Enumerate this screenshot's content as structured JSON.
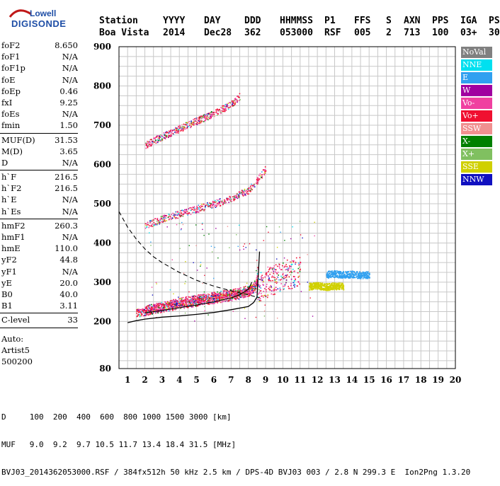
{
  "logo": {
    "top": "Lowell",
    "bottom": "DIGISONDE"
  },
  "header": {
    "line1": [
      "Station",
      "YYYY",
      "DAY",
      "DDD",
      "HHMMSS",
      "P1",
      "FFS",
      "S",
      "AXN",
      "PPS",
      "IGA",
      "PS"
    ],
    "line2": [
      "Boa Vista",
      "2014",
      "Dec28",
      "362",
      "053000",
      "RSF",
      "005",
      "2",
      "713",
      "100",
      "03+",
      "30"
    ]
  },
  "params": [
    {
      "name": "foF2",
      "value": "8.650"
    },
    {
      "name": "foF1",
      "value": "N/A"
    },
    {
      "name": "foF1p",
      "value": "N/A"
    },
    {
      "name": "foE",
      "value": "N/A"
    },
    {
      "name": "foEp",
      "value": "0.46"
    },
    {
      "name": "fxI",
      "value": "9.25"
    },
    {
      "name": "foEs",
      "value": "N/A"
    },
    {
      "name": "fmin",
      "value": "1.50"
    },
    {
      "sep": true
    },
    {
      "name": "MUF(D)",
      "value": "31.53"
    },
    {
      "name": "M(D)",
      "value": "3.65"
    },
    {
      "name": "D",
      "value": "N/A"
    },
    {
      "sep": true
    },
    {
      "name": "h`F",
      "value": "216.5"
    },
    {
      "name": "h`F2",
      "value": "216.5"
    },
    {
      "name": "h`E",
      "value": "N/A"
    },
    {
      "name": "h`Es",
      "value": "N/A"
    },
    {
      "sep": true
    },
    {
      "name": "hmF2",
      "value": "260.3"
    },
    {
      "name": "hmF1",
      "value": "N/A"
    },
    {
      "name": "hmE",
      "value": "110.0"
    },
    {
      "name": "yF2",
      "value": "44.8"
    },
    {
      "name": "yF1",
      "value": "N/A"
    },
    {
      "name": "yE",
      "value": "20.0"
    },
    {
      "name": "B0",
      "value": "40.0"
    },
    {
      "name": "B1",
      "value": "3.11"
    },
    {
      "sep": true
    },
    {
      "name": "C-level",
      "value": "33"
    },
    {
      "sep": true
    }
  ],
  "autoscaler": [
    "Auto:",
    "Artist5",
    "500200"
  ],
  "legend": [
    {
      "label": "NoVal",
      "color": "#808080"
    },
    {
      "label": "NNE",
      "color": "#00e0f0"
    },
    {
      "label": "E",
      "color": "#30a0f0"
    },
    {
      "label": "W",
      "color": "#a000a0"
    },
    {
      "label": "Vo-",
      "color": "#f040a0"
    },
    {
      "label": "Vo+",
      "color": "#f01030"
    },
    {
      "label": "SSW",
      "color": "#f09090"
    },
    {
      "label": "X-",
      "color": "#008000"
    },
    {
      "label": "X+",
      "color": "#80c060"
    },
    {
      "label": "SSE",
      "color": "#d0d000"
    },
    {
      "label": "NNW",
      "color": "#1010c0"
    }
  ],
  "footer": {
    "d_row": "D     100  200  400  600  800 1000 1500 3000 [km]",
    "muf_row": "MUF   9.0  9.2  9.7 10.5 11.7 13.4 18.4 31.5 [MHz]",
    "file_row": "BVJ03_2014362053000.RSF / 384fx512h 50 kHz 2.5 km / DPS-4D BVJ03 003 / 2.8 N 299.3 E  Ion2Png 1.3.20"
  },
  "chart_data": {
    "type": "scatter",
    "xlim": [
      0.5,
      20
    ],
    "ylim": [
      80,
      900
    ],
    "xticks": [
      "1",
      "2",
      "3",
      "4",
      "5",
      "6",
      "7",
      "8",
      "9",
      "10",
      "11",
      "12",
      "13",
      "14",
      "15",
      "16",
      "17",
      "18",
      "19",
      "20"
    ],
    "yticks": [
      "200",
      "300",
      "400",
      "500",
      "600",
      "700",
      "800",
      "900"
    ],
    "yticks_bottom": "80",
    "grid": true,
    "legend_position": "right",
    "series": [
      {
        "kind": "trace",
        "polarization": "Vo+",
        "x": [
          1.5,
          2.0,
          3.0,
          4.0,
          5.0,
          6.0,
          7.0,
          7.5,
          8.0,
          8.3,
          8.6
        ],
        "y": [
          222,
          227,
          236,
          244,
          251,
          258,
          265,
          270,
          276,
          290,
          320
        ]
      },
      {
        "kind": "trace",
        "polarization": "X-",
        "x": [
          2.0,
          3.0,
          4.0,
          5.0,
          6.0,
          7.0,
          8.0,
          8.5,
          9.0,
          10.0,
          11.0
        ],
        "y": [
          230,
          240,
          250,
          258,
          265,
          272,
          282,
          288,
          298,
          318,
          330
        ]
      },
      {
        "kind": "trace",
        "polarization": "Vo+",
        "x": [
          2.0,
          3.0,
          4.0,
          5.0,
          6.0,
          7.0,
          8.0,
          8.5,
          9.0
        ],
        "y": [
          445,
          462,
          475,
          488,
          500,
          515,
          535,
          560,
          590
        ]
      },
      {
        "kind": "trace",
        "polarization": "Vo+",
        "x": [
          2.0,
          3.0,
          4.0,
          5.0,
          6.0,
          7.0,
          7.5
        ],
        "y": [
          650,
          672,
          692,
          712,
          730,
          755,
          775
        ]
      },
      {
        "kind": "trace",
        "polarization": "E",
        "x": [
          12.5,
          13.0,
          13.5,
          14.0,
          14.5,
          15.0
        ],
        "y": [
          320,
          322,
          320,
          321,
          319,
          320
        ]
      },
      {
        "kind": "trace",
        "polarization": "SSE",
        "x": [
          11.5,
          12.0,
          12.5,
          13.0,
          13.5
        ],
        "y": [
          290,
          292,
          289,
          291,
          290
        ]
      }
    ],
    "profile_solid": {
      "x": [
        1.0,
        1.5,
        2.0,
        3.0,
        4.0,
        5.0,
        6.0,
        7.0,
        8.0,
        8.3,
        8.5,
        8.65
      ],
      "y": [
        197,
        202,
        206,
        211,
        214,
        218,
        223,
        230,
        238,
        248,
        262,
        378
      ]
    },
    "profile_solid2": {
      "x": [
        2.0,
        3.0,
        4.0,
        5.0,
        6.0,
        7.0,
        7.5,
        8.0,
        8.2
      ],
      "y": [
        222,
        228,
        235,
        242,
        250,
        260,
        268,
        282,
        300
      ]
    },
    "muf_dashed": {
      "x": [
        0.5,
        1.0,
        1.5,
        2.0,
        2.5,
        3.0,
        4.0,
        5.0,
        6.0,
        7.0,
        8.0,
        8.65
      ],
      "y": [
        480,
        440,
        410,
        385,
        365,
        350,
        325,
        305,
        290,
        278,
        268,
        260
      ]
    }
  }
}
